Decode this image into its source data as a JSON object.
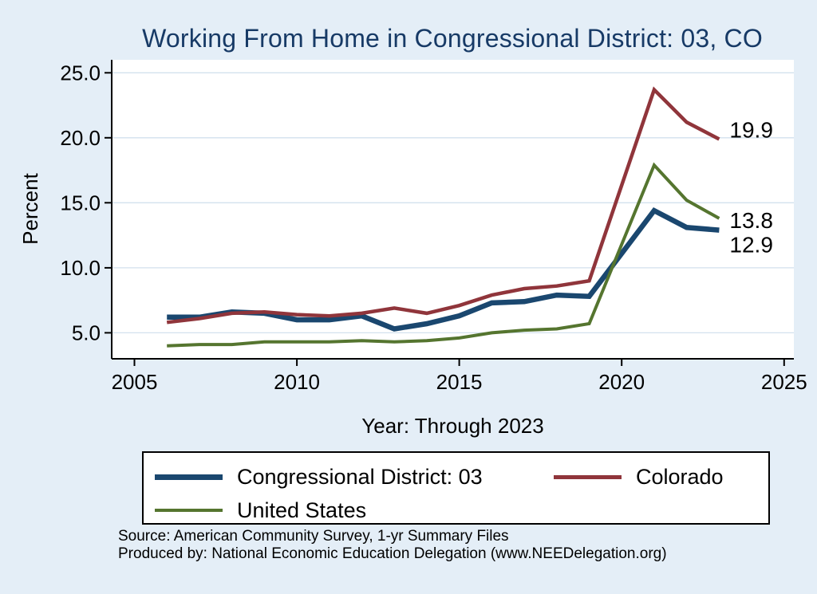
{
  "chart_data": {
    "type": "line",
    "title": "Working From Home in Congressional District: 03, CO",
    "xlabel": "Year: Through 2023",
    "ylabel": "Percent",
    "x": [
      2006,
      2007,
      2008,
      2009,
      2010,
      2011,
      2012,
      2013,
      2014,
      2015,
      2016,
      2017,
      2018,
      2019,
      2021,
      2022,
      2023
    ],
    "series": [
      {
        "name": "Congressional District: 03",
        "color": "#1a476f",
        "width": 6.5,
        "values": [
          6.2,
          6.2,
          6.6,
          6.5,
          6.0,
          6.0,
          6.3,
          5.3,
          5.7,
          6.3,
          7.3,
          7.4,
          7.9,
          7.8,
          14.4,
          13.1,
          12.9
        ],
        "end_label": "12.9",
        "end_label_dy": 18
      },
      {
        "name": "Colorado",
        "color": "#90353b",
        "width": 4.5,
        "values": [
          5.8,
          6.1,
          6.5,
          6.6,
          6.4,
          6.3,
          6.5,
          6.9,
          6.5,
          7.1,
          7.9,
          8.4,
          8.6,
          9.0,
          23.7,
          21.2,
          19.9
        ],
        "end_label": "19.9",
        "end_label_dy": -12
      },
      {
        "name": "United States",
        "color": "#55752f",
        "width": 4,
        "values": [
          4.0,
          4.1,
          4.1,
          4.3,
          4.3,
          4.3,
          4.4,
          4.3,
          4.4,
          4.6,
          5.0,
          5.2,
          5.3,
          5.7,
          17.9,
          15.2,
          13.8
        ],
        "end_label": "13.8",
        "end_label_dy": 2
      }
    ],
    "xticks": [
      2005,
      2010,
      2015,
      2020,
      2025
    ],
    "xtick_labels": [
      "2005",
      "2010",
      "2015",
      "2020",
      "2025"
    ],
    "yticks": [
      5,
      10,
      15,
      20,
      25
    ],
    "ytick_labels": [
      "5.0",
      "10.0",
      "15.0",
      "20.0",
      "25.0"
    ],
    "xlim": [
      2004.3,
      2025.3
    ],
    "ylim": [
      3,
      26
    ],
    "grid": true,
    "legend_position": "bottom"
  },
  "colors": {
    "background": "#e4eef7",
    "plot_background": "#ffffff",
    "grid": "#d3e1ee",
    "title": "#173a66",
    "axis": "#000000"
  },
  "footer": {
    "source_line1": "Source: American Community Survey, 1-yr Summary Files",
    "source_line2": "Produced by: National Economic Education Delegation (www.NEEDelegation.org)"
  }
}
